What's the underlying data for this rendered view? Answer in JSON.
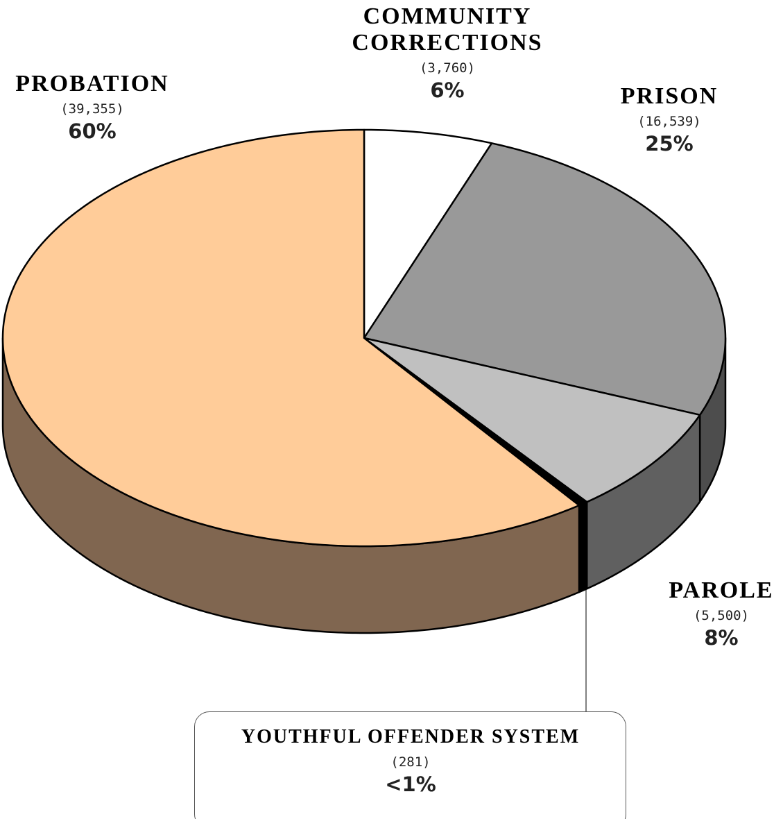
{
  "chart_data": {
    "type": "pie",
    "categories": [
      "COMMUNITY CORRECTIONS",
      "PRISON",
      "PAROLE",
      "YOUTHFUL OFFENDER SYSTEM",
      "PROBATION"
    ],
    "values": [
      3760,
      16539,
      5500,
      281,
      39355
    ],
    "value_labels": [
      "(3,760)",
      "(16,539)",
      "(5,500)",
      "(281)",
      "(39,355)"
    ],
    "percent_labels": [
      "6%",
      "25%",
      "8%",
      "<1%",
      "60%"
    ],
    "colors": [
      "#ffffff",
      "#999999",
      "#c0c0c0",
      "#000000",
      "#ffcc99"
    ],
    "side_colors": [
      "#e0e0e0",
      "#4d4d4d",
      "#606060",
      "#000000",
      "#806650"
    ]
  }
}
